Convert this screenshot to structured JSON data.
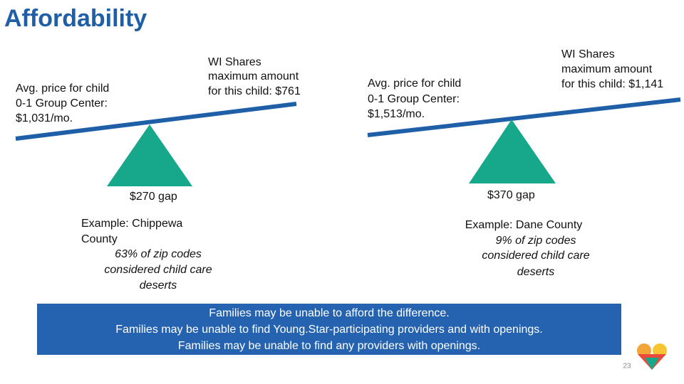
{
  "title": "Affordability",
  "panels": [
    {
      "price_label": [
        "Avg. price for child",
        "0-1 Group Center:",
        "$1,031/mo."
      ],
      "shares_label": [
        "WI Shares",
        "maximum amount",
        "for this child: $761"
      ],
      "gap": "$270 gap",
      "example": [
        "Example: Chippewa",
        "County"
      ],
      "stat": [
        "63% of zip codes",
        "considered child care",
        "deserts"
      ]
    },
    {
      "price_label": [
        "Avg. price for child",
        "0-1 Group Center:",
        "$1,513/mo."
      ],
      "shares_label": [
        "WI Shares",
        "maximum amount",
        "for this child: $1,141"
      ],
      "gap": "$370 gap",
      "example": [
        "Example: Dane County"
      ],
      "stat": [
        "9% of zip codes",
        "considered child care",
        "deserts"
      ]
    }
  ],
  "banner": [
    "Families may be unable to afford the difference.",
    "Families may be unable to find Young.Star-participating providers and with openings.",
    "Families may be unable to find any providers with openings."
  ],
  "page_number": "23"
}
